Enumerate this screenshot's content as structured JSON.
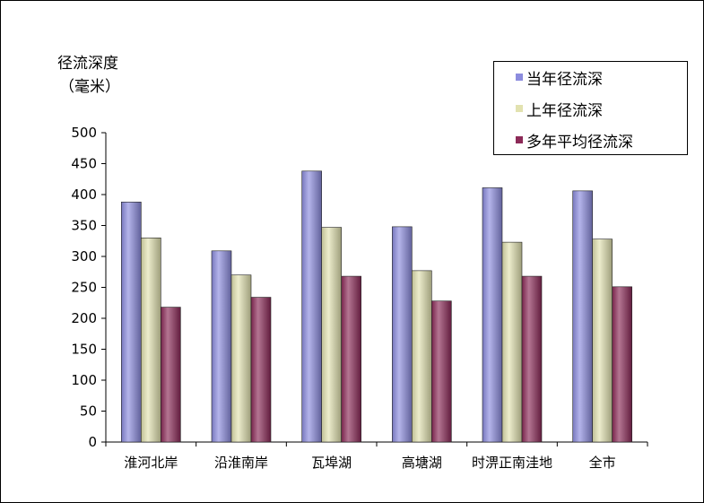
{
  "chart_data": {
    "type": "bar",
    "ylabel_line1": "径流深度",
    "ylabel_line2": "（毫米）",
    "categories": [
      "淮河北岸",
      "沿淮南岸",
      "瓦埠湖",
      "高塘湖",
      "时淠正南洼地",
      "全市"
    ],
    "series": [
      {
        "name": "当年径流深",
        "color": "#8c8cde",
        "values": [
          388,
          309,
          438,
          348,
          411,
          406
        ]
      },
      {
        "name": "上年径流深",
        "color": "#e2e2b0",
        "values": [
          330,
          270,
          347,
          277,
          323,
          328
        ]
      },
      {
        "name": "多年平均径流深",
        "color": "#8c2a58",
        "values": [
          218,
          234,
          268,
          228,
          268,
          251
        ]
      }
    ],
    "ylim": [
      0,
      500
    ],
    "yticks": [
      0,
      50,
      100,
      150,
      200,
      250,
      300,
      350,
      400,
      450,
      500
    ],
    "grid": false,
    "legend_position": "top-right"
  }
}
